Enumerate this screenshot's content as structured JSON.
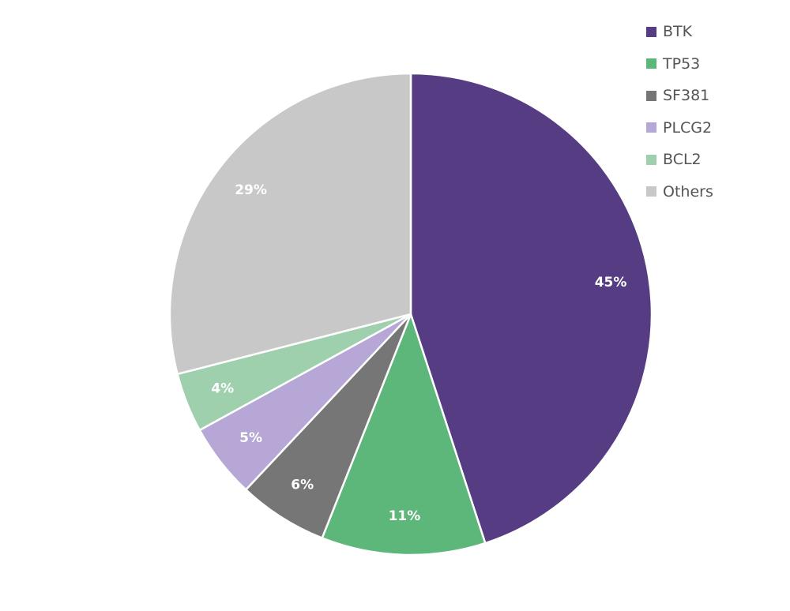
{
  "chart_data": {
    "type": "pie",
    "title": "",
    "legend_position": "top-right",
    "slices": [
      {
        "label": "BTK",
        "value": 45,
        "display": "45%",
        "color": "#553c83"
      },
      {
        "label": "TP53",
        "value": 11,
        "display": "11%",
        "color": "#5db67a"
      },
      {
        "label": "SF381",
        "value": 6,
        "display": "6%",
        "color": "#767676"
      },
      {
        "label": "PLCG2",
        "value": 5,
        "display": "5%",
        "color": "#b6a7d6"
      },
      {
        "label": "BCL2",
        "value": 4,
        "display": "4%",
        "color": "#9fd0ad"
      },
      {
        "label": "Others",
        "value": 29,
        "display": "29%",
        "color": "#c8c8c8"
      }
    ]
  }
}
